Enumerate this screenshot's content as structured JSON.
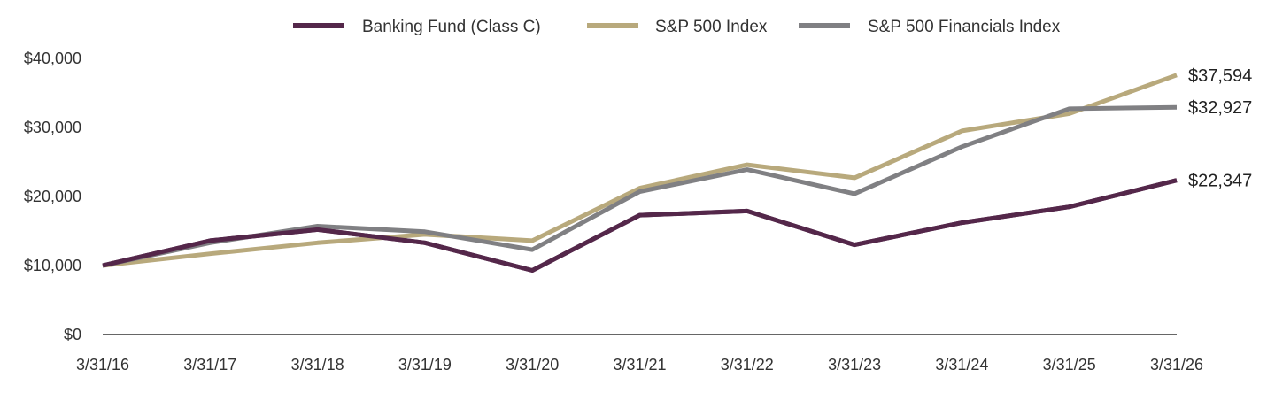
{
  "chart_data": {
    "type": "line",
    "x": [
      "3/31/16",
      "3/31/17",
      "3/31/18",
      "3/31/19",
      "3/31/20",
      "3/31/21",
      "3/31/22",
      "3/31/23",
      "3/31/24",
      "3/31/25",
      "3/31/26"
    ],
    "ylim": [
      0,
      40000
    ],
    "yticks": [
      0,
      10000,
      20000,
      30000,
      40000
    ],
    "ytick_labels": [
      "$0",
      "$10,000",
      "$20,000",
      "$30,000",
      "$40,000"
    ],
    "legend_position": "top-center",
    "grid": false,
    "series": [
      {
        "name": "Banking Fund (Class C)",
        "color": "#54274a",
        "values": [
          10000,
          13600,
          15200,
          13300,
          9300,
          17300,
          17900,
          13000,
          16200,
          18500,
          22347
        ],
        "end_label": "$22,347"
      },
      {
        "name": "S&P 500 Index",
        "color": "#b8a97c",
        "values": [
          10000,
          11700,
          13300,
          14500,
          13600,
          21200,
          24600,
          22700,
          29500,
          32000,
          37594
        ],
        "end_label": "$37,594"
      },
      {
        "name": "S&P 500 Financials Index",
        "color": "#808083",
        "values": [
          10000,
          13300,
          15700,
          14900,
          12300,
          20700,
          23900,
          20400,
          27200,
          32700,
          32927
        ],
        "end_label": "$32,927"
      }
    ]
  }
}
